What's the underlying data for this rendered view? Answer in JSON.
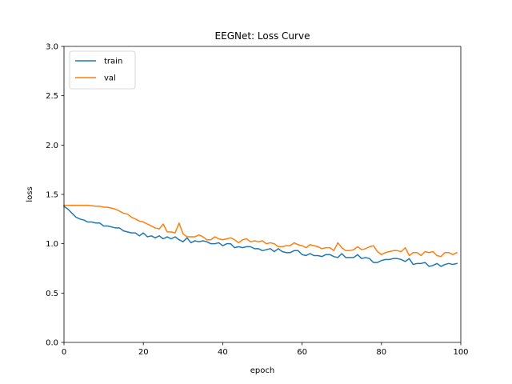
{
  "chart_data": {
    "type": "line",
    "title": "EEGNet: Loss Curve",
    "xlabel": "epoch",
    "ylabel": "loss",
    "xlim": [
      0,
      100
    ],
    "ylim": [
      0.0,
      3.0
    ],
    "x_ticks": [
      0,
      20,
      40,
      60,
      80,
      100
    ],
    "y_ticks": [
      0.0,
      0.5,
      1.0,
      1.5,
      2.0,
      2.5,
      3.0
    ],
    "x_tick_labels": [
      "0",
      "20",
      "40",
      "60",
      "80",
      "100"
    ],
    "y_tick_labels": [
      "0.0",
      "0.5",
      "1.0",
      "1.5",
      "2.0",
      "2.5",
      "3.0"
    ],
    "grid": false,
    "legend_position": "top-left",
    "series": [
      {
        "name": "train",
        "color": "#1f77b4",
        "x": [
          0,
          1,
          2,
          3,
          4,
          5,
          6,
          7,
          8,
          9,
          10,
          11,
          12,
          13,
          14,
          15,
          16,
          17,
          18,
          19,
          20,
          21,
          22,
          23,
          24,
          25,
          26,
          27,
          28,
          29,
          30,
          31,
          32,
          33,
          34,
          35,
          36,
          37,
          38,
          39,
          40,
          41,
          42,
          43,
          44,
          45,
          46,
          47,
          48,
          49,
          50,
          51,
          52,
          53,
          54,
          55,
          56,
          57,
          58,
          59,
          60,
          61,
          62,
          63,
          64,
          65,
          66,
          67,
          68,
          69,
          70,
          71,
          72,
          73,
          74,
          75,
          76,
          77,
          78,
          79,
          80,
          81,
          82,
          83,
          84,
          85,
          86,
          87,
          88,
          89,
          90,
          91,
          92,
          93,
          94,
          95,
          96,
          97,
          98,
          99
        ],
        "values": [
          1.38,
          1.35,
          1.31,
          1.27,
          1.25,
          1.24,
          1.22,
          1.22,
          1.21,
          1.21,
          1.18,
          1.18,
          1.17,
          1.16,
          1.16,
          1.13,
          1.12,
          1.11,
          1.11,
          1.08,
          1.11,
          1.07,
          1.08,
          1.06,
          1.08,
          1.05,
          1.07,
          1.05,
          1.07,
          1.04,
          1.02,
          1.06,
          1.01,
          1.03,
          1.02,
          1.03,
          1.02,
          1.0,
          1.0,
          1.01,
          0.98,
          1.0,
          1.0,
          0.96,
          0.97,
          0.96,
          0.97,
          0.97,
          0.95,
          0.95,
          0.93,
          0.94,
          0.95,
          0.92,
          0.95,
          0.92,
          0.91,
          0.91,
          0.93,
          0.93,
          0.89,
          0.88,
          0.9,
          0.88,
          0.88,
          0.87,
          0.89,
          0.89,
          0.87,
          0.86,
          0.9,
          0.86,
          0.86,
          0.86,
          0.89,
          0.85,
          0.86,
          0.85,
          0.81,
          0.81,
          0.83,
          0.84,
          0.84,
          0.85,
          0.85,
          0.84,
          0.82,
          0.85,
          0.79,
          0.8,
          0.8,
          0.81,
          0.77,
          0.78,
          0.8,
          0.77,
          0.79,
          0.8,
          0.79,
          0.8
        ]
      },
      {
        "name": "val",
        "color": "#ff7f0e",
        "x": [
          0,
          1,
          2,
          3,
          4,
          5,
          6,
          7,
          8,
          9,
          10,
          11,
          12,
          13,
          14,
          15,
          16,
          17,
          18,
          19,
          20,
          21,
          22,
          23,
          24,
          25,
          26,
          27,
          28,
          29,
          30,
          31,
          32,
          33,
          34,
          35,
          36,
          37,
          38,
          39,
          40,
          41,
          42,
          43,
          44,
          45,
          46,
          47,
          48,
          49,
          50,
          51,
          52,
          53,
          54,
          55,
          56,
          57,
          58,
          59,
          60,
          61,
          62,
          63,
          64,
          65,
          66,
          67,
          68,
          69,
          70,
          71,
          72,
          73,
          74,
          75,
          76,
          77,
          78,
          79,
          80,
          81,
          82,
          83,
          84,
          85,
          86,
          87,
          88,
          89,
          90,
          91,
          92,
          93,
          94,
          95,
          96,
          97,
          98,
          99
        ],
        "values": [
          1.39,
          1.39,
          1.39,
          1.39,
          1.39,
          1.39,
          1.39,
          1.385,
          1.38,
          1.38,
          1.37,
          1.37,
          1.36,
          1.35,
          1.33,
          1.31,
          1.3,
          1.27,
          1.25,
          1.23,
          1.22,
          1.2,
          1.18,
          1.16,
          1.15,
          1.2,
          1.12,
          1.12,
          1.11,
          1.21,
          1.1,
          1.07,
          1.07,
          1.07,
          1.09,
          1.07,
          1.04,
          1.04,
          1.07,
          1.05,
          1.04,
          1.05,
          1.06,
          1.04,
          1.01,
          1.04,
          1.05,
          1.02,
          1.03,
          1.02,
          1.03,
          1.0,
          1.01,
          1.0,
          0.97,
          0.97,
          0.98,
          0.98,
          1.01,
          0.99,
          0.98,
          0.96,
          0.99,
          0.98,
          0.97,
          0.95,
          0.96,
          0.96,
          0.93,
          1.01,
          0.96,
          0.93,
          0.93,
          0.94,
          0.97,
          0.94,
          0.95,
          0.97,
          0.98,
          0.92,
          0.89,
          0.91,
          0.92,
          0.93,
          0.93,
          0.92,
          0.96,
          0.88,
          0.91,
          0.91,
          0.88,
          0.92,
          0.91,
          0.92,
          0.88,
          0.87,
          0.91,
          0.91,
          0.89,
          0.91
        ]
      }
    ]
  }
}
